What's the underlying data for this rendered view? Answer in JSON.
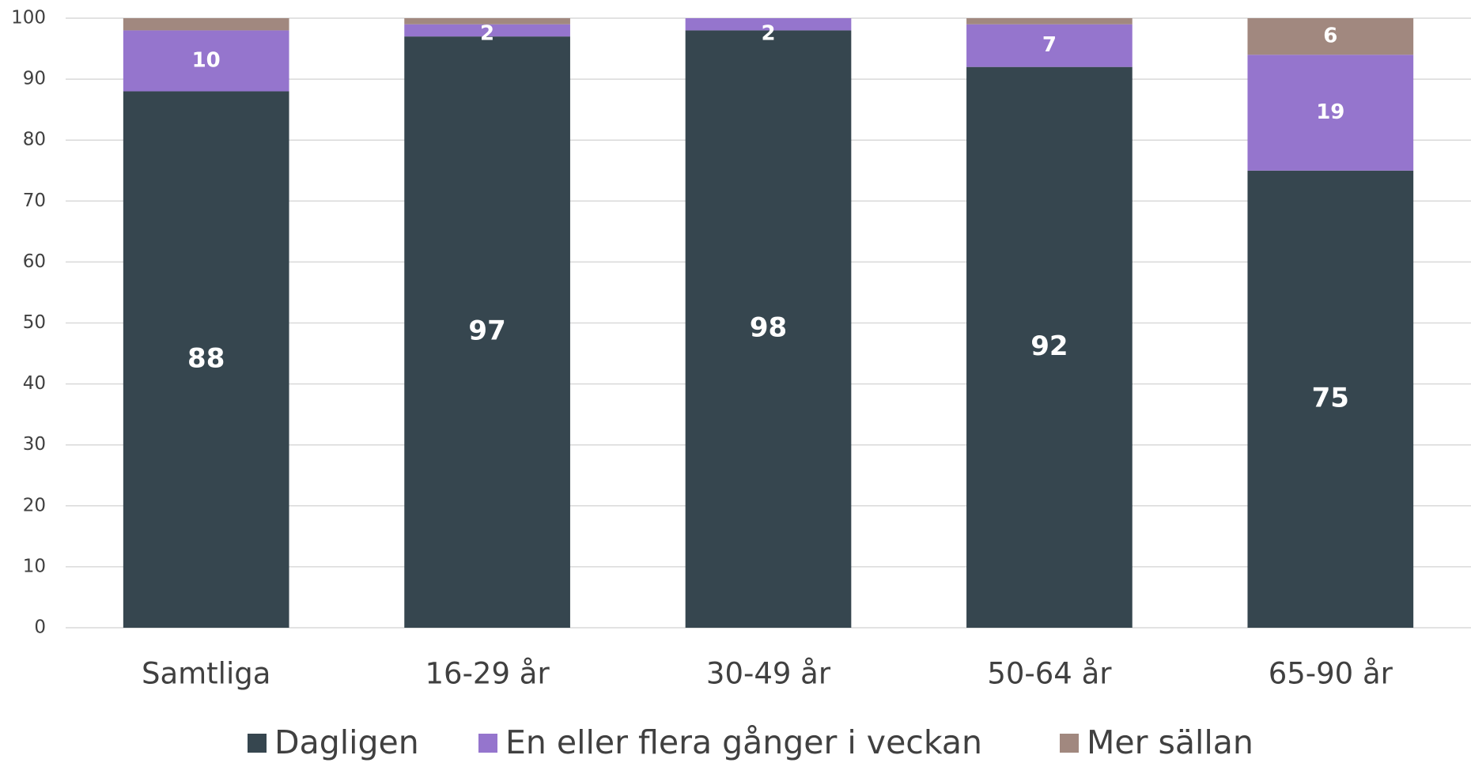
{
  "chart_data": {
    "type": "stacked_bar",
    "categories": [
      "Samtliga",
      "16-29 år",
      "30-49 år",
      "50-64 år",
      "65-90 år"
    ],
    "series": [
      {
        "name": "Dagligen",
        "color": "#36464f",
        "values": [
          88,
          97,
          98,
          92,
          75
        ]
      },
      {
        "name": "En eller flera gånger i veckan",
        "color": "#9575cd",
        "values": [
          10,
          2,
          2,
          7,
          19
        ]
      },
      {
        "name": "Mer sällan",
        "color": "#a1887f",
        "values": [
          2,
          1,
          0,
          1,
          6
        ],
        "value_labels": [
          null,
          null,
          null,
          null,
          "6"
        ]
      }
    ],
    "ylim": [
      0,
      100
    ],
    "yticks": [
      0,
      10,
      20,
      30,
      40,
      50,
      60,
      70,
      80,
      90,
      100
    ],
    "grid": true,
    "legend": "bottom"
  }
}
